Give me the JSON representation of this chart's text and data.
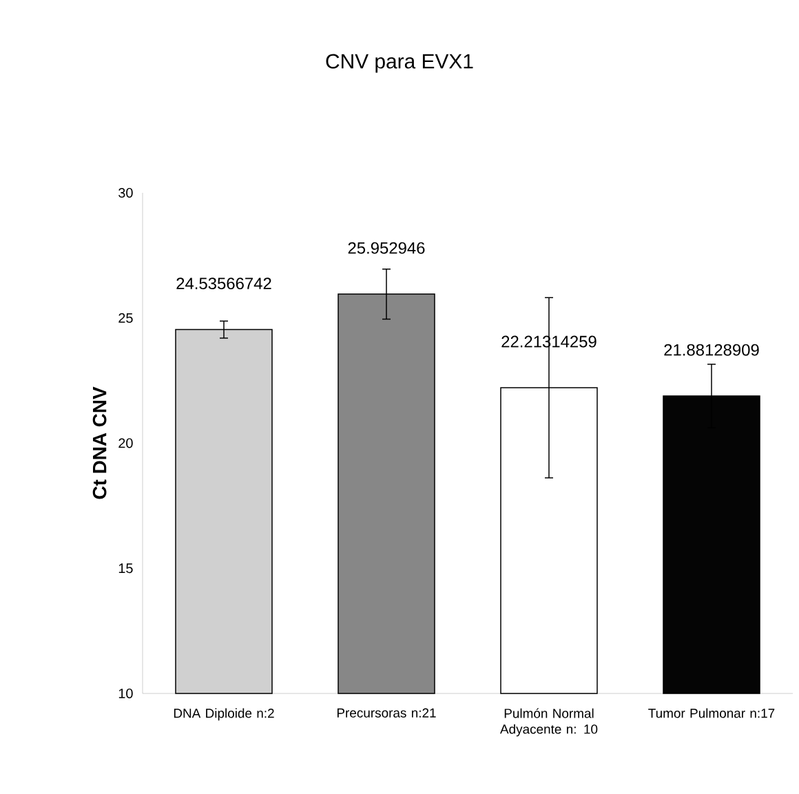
{
  "chart_data": {
    "type": "bar",
    "title": "CNV para EVX1",
    "ylabel": "Ct DNA CNV",
    "categories": [
      "DNA Diploide  n:2",
      "Precursoras n:21",
      "Pulmón Normal Adyacente n: 10",
      "Tumor Pulmonar n:17"
    ],
    "values": [
      24.53566742,
      25.952946,
      22.21314259,
      21.88128909
    ],
    "value_labels": [
      "24.53566742",
      "25.952946",
      "22.21314259",
      "21.88128909"
    ],
    "errors": [
      0.34,
      1.0,
      3.6,
      1.27
    ],
    "colors": [
      "#d0d0d0",
      "#878787",
      "#ffffff",
      "#050505"
    ],
    "ylim": [
      10,
      30
    ],
    "yticks": [
      10,
      15,
      20,
      25,
      30
    ],
    "grid": false
  }
}
